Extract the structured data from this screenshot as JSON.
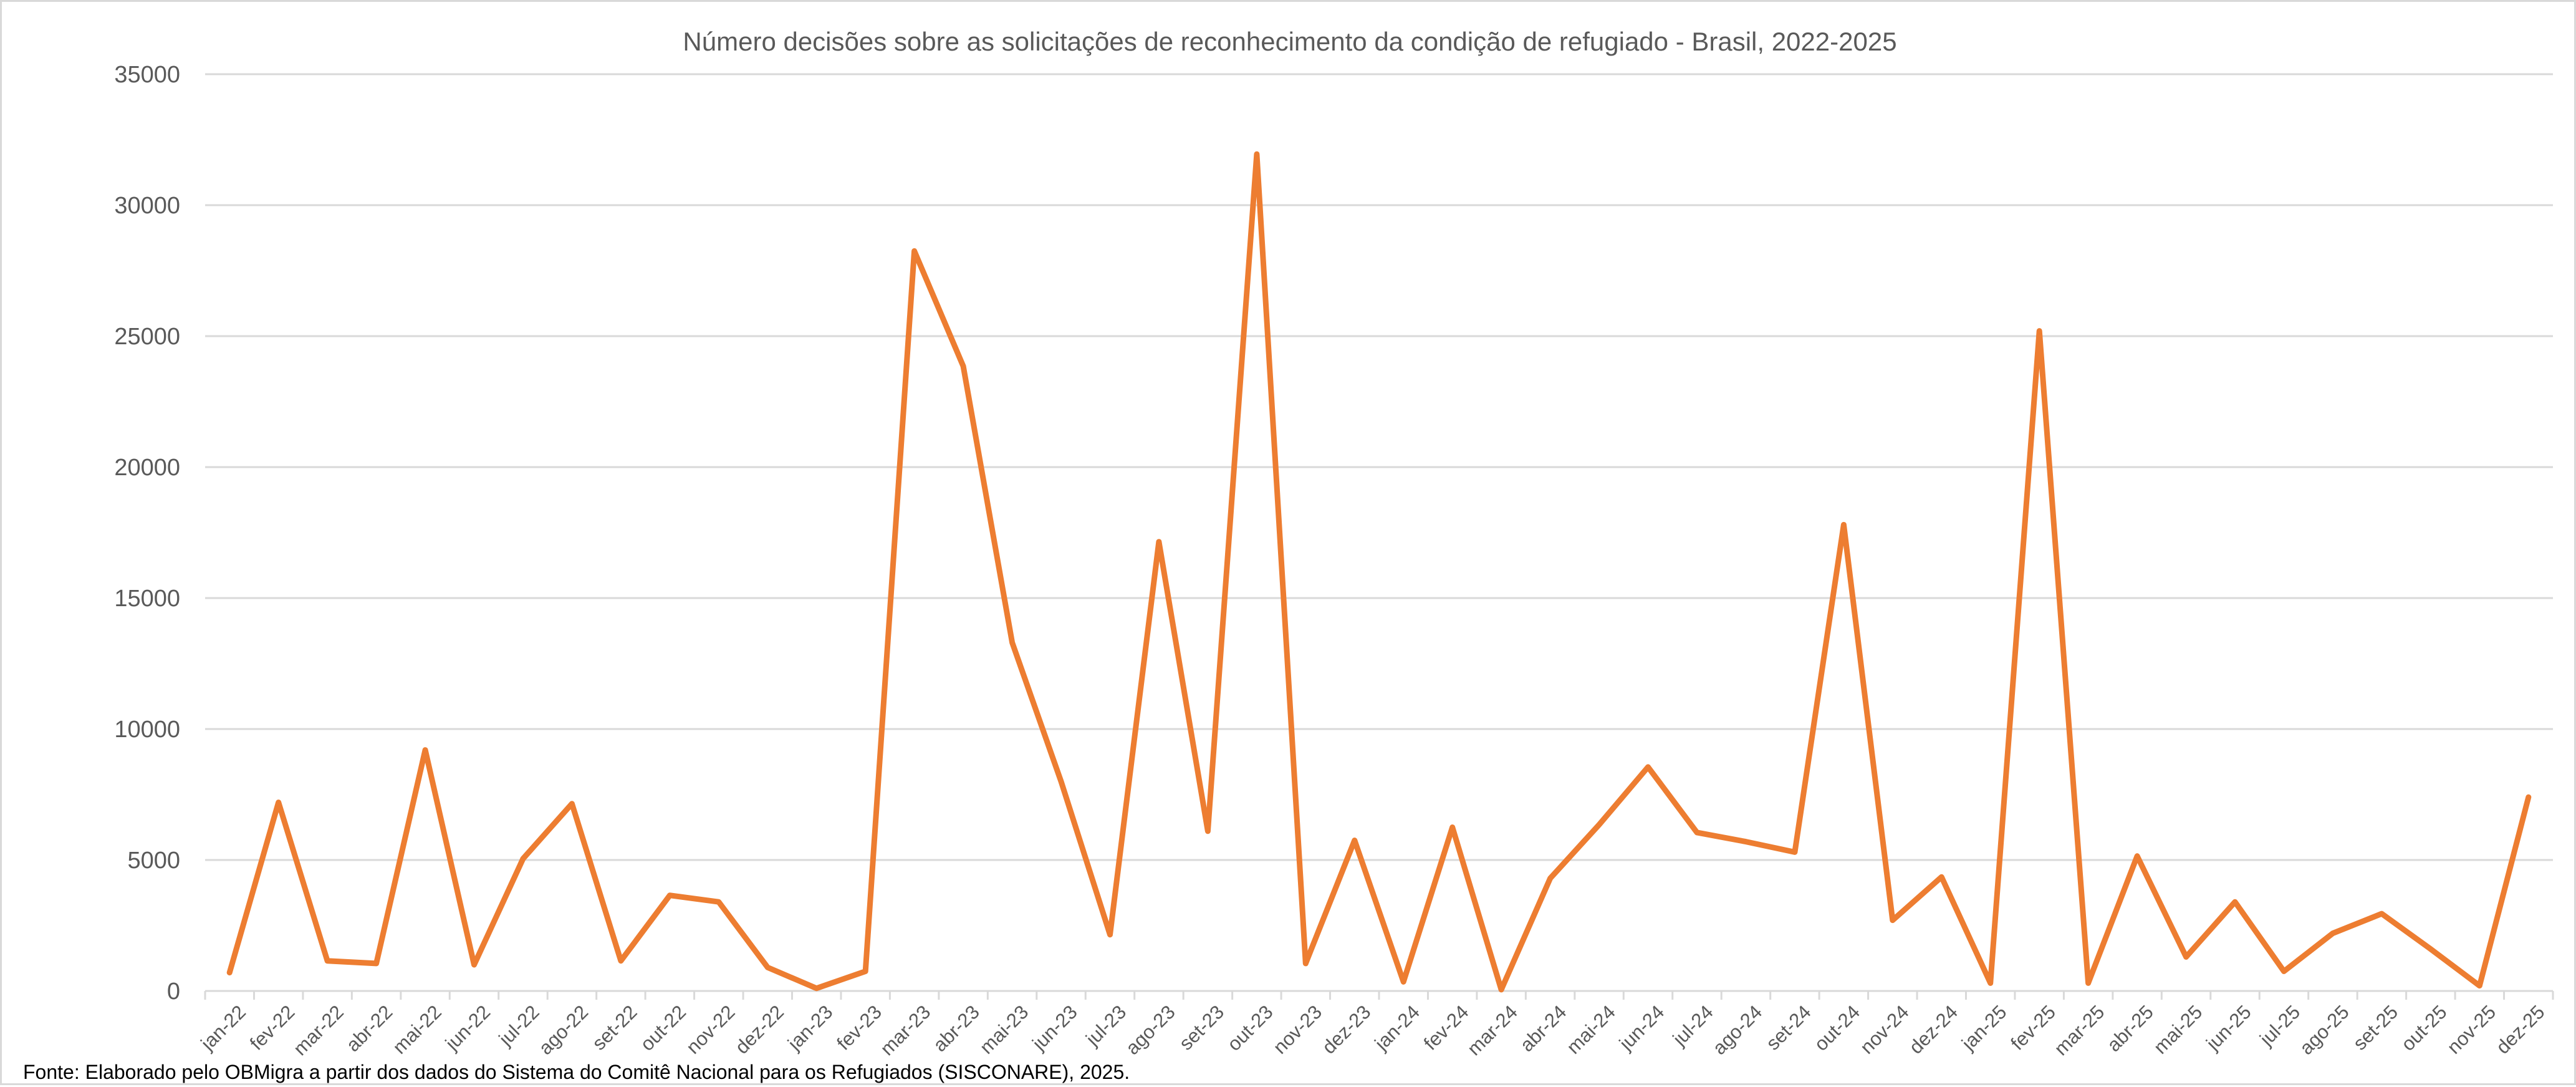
{
  "chart_data": {
    "type": "line",
    "title": "Número decisões sobre as solicitações de reconhecimento da condição de refugiado - Brasil, 2022-2025",
    "xlabel": "",
    "ylabel": "",
    "ylim": [
      0,
      35000
    ],
    "y_ticks": [
      "0",
      "5000",
      "10000",
      "15000",
      "20000",
      "25000",
      "30000",
      "35000"
    ],
    "grid": true,
    "legend": "none",
    "line_color": "#ED7D31",
    "grid_color": "#D9D9D9",
    "categories": [
      "jan-22",
      "fev-22",
      "mar-22",
      "abr-22",
      "mai-22",
      "jun-22",
      "jul-22",
      "ago-22",
      "set-22",
      "out-22",
      "nov-22",
      "dez-22",
      "jan-23",
      "fev-23",
      "mar-23",
      "abr-23",
      "mai-23",
      "jun-23",
      "jul-23",
      "ago-23",
      "set-23",
      "out-23",
      "nov-23",
      "dez-23",
      "jan-24",
      "fev-24",
      "mar-24",
      "abr-24",
      "mai-24",
      "jun-24",
      "jul-24",
      "ago-24",
      "set-24",
      "out-24",
      "nov-24",
      "dez-24",
      "jan-25",
      "fev-25",
      "mar-25",
      "abr-25",
      "mai-25",
      "jun-25",
      "jul-25",
      "ago-25",
      "set-25",
      "out-25",
      "nov-25",
      "dez-25"
    ],
    "series": [
      {
        "values": [
          700,
          7200,
          1150,
          1050,
          9200,
          1000,
          5050,
          7150,
          1150,
          3650,
          3400,
          900,
          100,
          750,
          28250,
          23850,
          13300,
          8000,
          2150,
          17150,
          6100,
          31950,
          1050,
          5750,
          350,
          6250,
          50,
          4300,
          6350,
          8550,
          6050,
          5700,
          5300,
          17800,
          2700,
          4350,
          300,
          25200,
          300,
          5150,
          1300,
          3400,
          750,
          2200,
          2950,
          1600,
          200,
          7400
        ]
      }
    ]
  },
  "footer": {
    "source": "Fonte: Elaborado pelo OBMigra a partir dos dados  do Sistema do Comitê Nacional para os Refugiados (SISCONARE), 2025."
  }
}
